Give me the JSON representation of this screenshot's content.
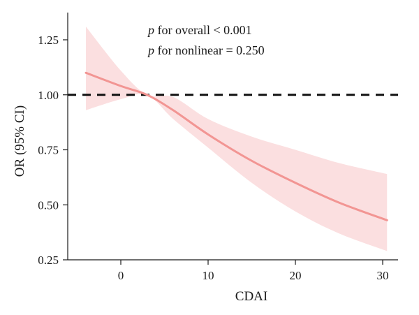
{
  "chart_data": {
    "type": "line",
    "xlabel": "CDAI",
    "ylabel": "OR (95% CI)",
    "xlim": [
      -6,
      32
    ],
    "ylim": [
      0.25,
      1.35
    ],
    "x_ticks": [
      0,
      10,
      20,
      30
    ],
    "y_ticks": [
      0.25,
      0.5,
      0.75,
      1.0,
      1.25
    ],
    "y_tick_labels": [
      "0.25",
      "0.50",
      "0.75",
      "1.00",
      "1.25"
    ],
    "reference_line": 1.0,
    "annotations": [
      {
        "italic": "p",
        "text": " for overall < 0.001"
      },
      {
        "italic": "p",
        "text": " for nonlinear = 0.250"
      }
    ],
    "series": [
      {
        "x": [
          -4,
          0,
          3,
          6,
          10,
          15,
          20,
          25,
          30.5
        ],
        "y": [
          1.1,
          1.04,
          1.0,
          0.93,
          0.82,
          0.7,
          0.6,
          0.51,
          0.43
        ],
        "lower": [
          0.93,
          0.98,
          1.0,
          0.89,
          0.76,
          0.6,
          0.47,
          0.37,
          0.29
        ],
        "upper": [
          1.31,
          1.11,
          1.0,
          0.99,
          0.89,
          0.81,
          0.75,
          0.69,
          0.64
        ]
      }
    ],
    "colors": {
      "line": "#f29593",
      "band": "#fbdfe0",
      "reference": "#111111"
    },
    "grid": false
  }
}
